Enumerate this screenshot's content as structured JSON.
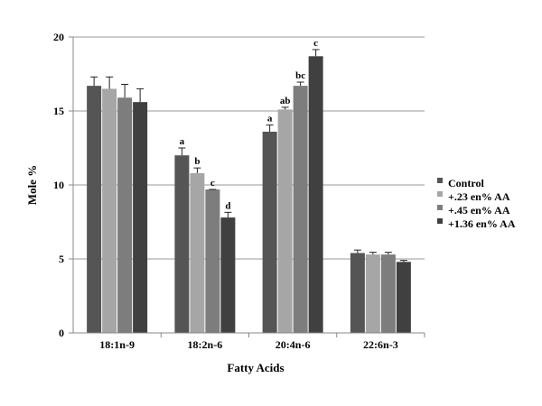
{
  "chart_data": {
    "type": "bar",
    "xlabel": "Fatty Acids",
    "ylabel": "Mole %",
    "ylim": [
      0,
      20
    ],
    "yticks": [
      "0",
      "5",
      "10",
      "15",
      "20"
    ],
    "grid": true,
    "legend_position": "right",
    "categories": [
      "18:1n-9",
      "18:2n-6",
      "20:4n-6",
      "22:6n-3"
    ],
    "series": [
      {
        "name": "Control",
        "color": "#555555",
        "values": [
          16.7,
          12.0,
          13.6,
          5.4
        ],
        "errors": [
          0.6,
          0.5,
          0.45,
          0.2
        ],
        "labels": [
          "",
          "a",
          "a",
          ""
        ]
      },
      {
        "name": "+.23 en% AA",
        "color": "#a6a6a6",
        "values": [
          16.5,
          10.8,
          15.1,
          5.3
        ],
        "errors": [
          0.8,
          0.35,
          0.15,
          0.15
        ],
        "labels": [
          "",
          "b",
          "ab",
          ""
        ]
      },
      {
        "name": "+.45 en% AA",
        "color": "#7d7d7d",
        "values": [
          15.9,
          9.7,
          16.7,
          5.3
        ],
        "errors": [
          0.9,
          0.0,
          0.25,
          0.15
        ],
        "labels": [
          "",
          "c",
          "bc",
          ""
        ]
      },
      {
        "name": "+1.36 en% AA",
        "color": "#404040",
        "values": [
          15.6,
          7.8,
          18.7,
          4.8
        ],
        "errors": [
          0.9,
          0.35,
          0.45,
          0.1
        ],
        "labels": [
          "",
          "d",
          "c",
          ""
        ]
      }
    ]
  }
}
